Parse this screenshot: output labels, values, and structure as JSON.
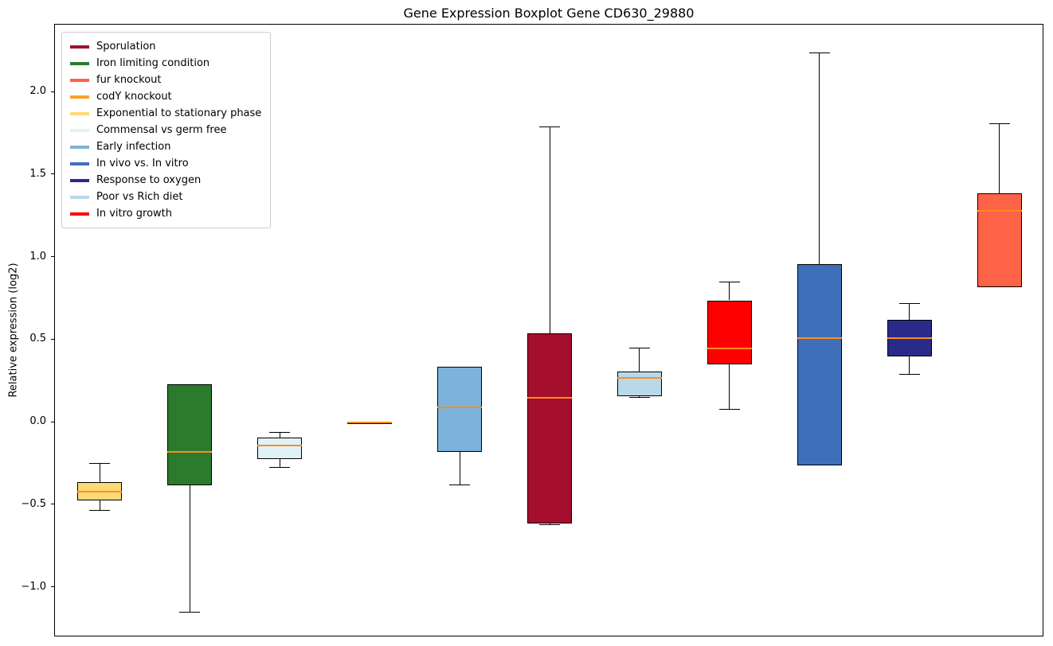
{
  "title": "Gene Expression Boxplot Gene CD630_29880",
  "ylabel": "Relative expression (log2)",
  "colors": {
    "median_line": "#ff8c1a",
    "box_edge": "#000000",
    "whisker": "#000000",
    "legend_border": "#cccccc",
    "background": "#ffffff"
  },
  "chart_data": {
    "type": "boxplot",
    "title": "Gene Expression Boxplot Gene CD630_29880",
    "xlabel": "",
    "ylabel": "Relative expression (log2)",
    "ylim": [
      -1.301,
      2.41
    ],
    "yticks": [
      -1.0,
      -0.5,
      0.0,
      0.5,
      1.0,
      1.5,
      2.0
    ],
    "grid": false,
    "legend_position": "upper left",
    "series": [
      {
        "name": "Exponential to stationary phase",
        "color": "#ffd978",
        "whisker_low": -0.53,
        "q1": -0.47,
        "median": -0.42,
        "q3": -0.36,
        "whisker_high": -0.25
      },
      {
        "name": "Iron limiting condition",
        "color": "#2c7a2c",
        "whisker_low": -1.15,
        "q1": -0.38,
        "median": -0.18,
        "q3": 0.23,
        "whisker_high": 0.23
      },
      {
        "name": "Commensal vs germ free",
        "color": "#e1f2f7",
        "whisker_low": -0.27,
        "q1": -0.22,
        "median": -0.14,
        "q3": -0.09,
        "whisker_high": -0.06
      },
      {
        "name": "codY knockout",
        "color": "#ff9f2e",
        "whisker_low": -0.005,
        "q1": -0.005,
        "median": 0.0,
        "q3": 0.005,
        "whisker_high": 0.005
      },
      {
        "name": "Early infection",
        "color": "#7db3da",
        "whisker_low": -0.38,
        "q1": -0.18,
        "median": 0.09,
        "q3": 0.34,
        "whisker_high": 0.34
      },
      {
        "name": "Sporulation",
        "color": "#a50e2d",
        "whisker_low": -0.62,
        "q1": -0.61,
        "median": 0.15,
        "q3": 0.54,
        "whisker_high": 1.79
      },
      {
        "name": "Poor vs Rich diet",
        "color": "#b9d8ea",
        "whisker_low": 0.15,
        "q1": 0.16,
        "median": 0.27,
        "q3": 0.31,
        "whisker_high": 0.45
      },
      {
        "name": "In vitro growth",
        "color": "#ff0000",
        "whisker_low": 0.08,
        "q1": 0.35,
        "median": 0.45,
        "q3": 0.74,
        "whisker_high": 0.85
      },
      {
        "name": "In vivo vs. In vitro",
        "color": "#3e6fba",
        "whisker_low": -0.26,
        "q1": -0.26,
        "median": 0.51,
        "q3": 0.96,
        "whisker_high": 2.24
      },
      {
        "name": "Response to oxygen",
        "color": "#2a2a8a",
        "whisker_low": 0.29,
        "q1": 0.4,
        "median": 0.51,
        "q3": 0.62,
        "whisker_high": 0.72
      },
      {
        "name": "fur knockout",
        "color": "#ff6347",
        "whisker_low": 0.82,
        "q1": 0.82,
        "median": 1.28,
        "q3": 1.39,
        "whisker_high": 1.81
      }
    ],
    "legend": [
      {
        "label": "Sporulation",
        "color": "#a50e2d"
      },
      {
        "label": "Iron limiting condition",
        "color": "#2c7a2c"
      },
      {
        "label": "fur knockout",
        "color": "#ff6347"
      },
      {
        "label": "codY knockout",
        "color": "#ff9f2e"
      },
      {
        "label": "Exponential to stationary phase",
        "color": "#ffd978"
      },
      {
        "label": "Commensal vs germ free",
        "color": "#e1f2f7"
      },
      {
        "label": "Early infection",
        "color": "#7db3da"
      },
      {
        "label": "In vivo vs. In vitro",
        "color": "#3e6fba"
      },
      {
        "label": "Response to oxygen",
        "color": "#2a2a8a"
      },
      {
        "label": "Poor vs Rich diet",
        "color": "#b9d8ea"
      },
      {
        "label": "In vitro growth",
        "color": "#ff0000"
      }
    ]
  }
}
